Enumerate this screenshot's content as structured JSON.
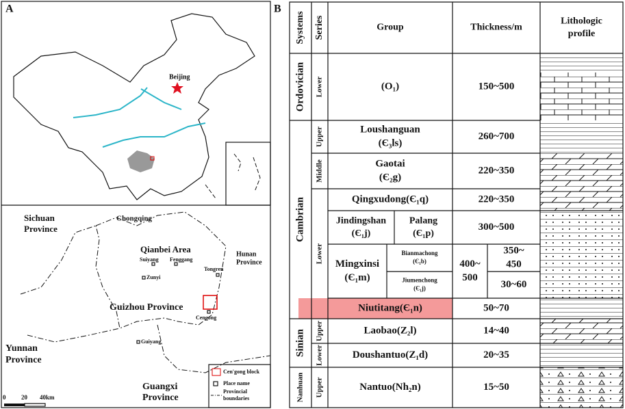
{
  "panel_labels": [
    "A",
    "B"
  ],
  "map_china": {
    "city": "Beijing"
  },
  "map_guizhou": {
    "regions": [
      {
        "lines": [
          "Sichuan",
          "Province"
        ]
      },
      {
        "lines": [
          "Chongqing"
        ]
      },
      {
        "lines": [
          "Qianbei Area"
        ]
      },
      {
        "lines": [
          "Hunan",
          "Province"
        ]
      },
      {
        "lines": [
          "Guizhou Province"
        ]
      },
      {
        "lines": [
          "Yunnan",
          "Province"
        ]
      },
      {
        "lines": [
          "Guangxi",
          "Province"
        ]
      }
    ],
    "places": [
      "Suiyang",
      "Fenggang",
      "Tongren",
      "Zunyi",
      "Cengong",
      "Guiyang"
    ],
    "legend": [
      {
        "lines": [
          "Cen'gong block"
        ]
      },
      {
        "lines": [
          "Place name"
        ]
      },
      {
        "lines": [
          "Provincial",
          "boundaries"
        ]
      }
    ],
    "scale": [
      "0",
      "20",
      "40km"
    ]
  },
  "table": {
    "header": [
      {
        "lines": [
          "Systems"
        ]
      },
      {
        "lines": [
          "Series"
        ]
      },
      {
        "lines": [
          "Group"
        ]
      },
      {
        "lines": [
          "Thickness/m"
        ]
      },
      {
        "lines": [
          "Lithologic",
          "profile"
        ]
      }
    ],
    "systems": [
      "Ordovician",
      "Cambrian",
      "Sinian",
      "Nanhuan"
    ],
    "series": [
      "Lower",
      "Upper",
      "Middle",
      "Lower",
      "Upper",
      "Lower",
      "Upper"
    ],
    "groups": [
      {
        "lines": [
          "(O₁)"
        ]
      },
      {
        "lines": [
          "Loushanguan",
          "(Є₃ls)"
        ]
      },
      {
        "lines": [
          "Gaotai",
          "(Є₂g)"
        ]
      },
      {
        "lines": [
          "Qingxudong(Є₁q)"
        ]
      },
      {
        "lines": [
          "Jindingshan",
          "(Є₁j)"
        ]
      },
      {
        "lines": [
          "Palang",
          "(Є₁p)"
        ]
      },
      {
        "lines": [
          "Mingxinsi",
          "(Є₁m)"
        ]
      },
      {
        "lines": [
          "Bianmachong",
          "(Є₁b)"
        ]
      },
      {
        "lines": [
          "Jiumenchong",
          "(Є₁j)"
        ]
      },
      {
        "lines": [
          "Niutitang(Є₁n)"
        ]
      },
      {
        "lines": [
          "Laobao(Z₂l)"
        ]
      },
      {
        "lines": [
          "Doushantuo(Z₁d)"
        ]
      },
      {
        "lines": [
          "Nantuo(Nh₂n)"
        ]
      }
    ],
    "thickness": [
      {
        "lines": [
          "150~500"
        ]
      },
      {
        "lines": [
          "260~700"
        ]
      },
      {
        "lines": [
          "220~350"
        ]
      },
      {
        "lines": [
          "220~350"
        ]
      },
      {
        "lines": [
          "300~500"
        ]
      },
      {
        "lines": [
          "400~",
          "500"
        ]
      },
      {
        "lines": [
          "350~",
          "450"
        ]
      },
      {
        "lines": [
          "30~60"
        ]
      },
      {
        "lines": [
          "50~70"
        ]
      },
      {
        "lines": [
          "14~40"
        ]
      },
      {
        "lines": [
          "20~35"
        ]
      },
      {
        "lines": [
          "15~50"
        ]
      }
    ]
  }
}
